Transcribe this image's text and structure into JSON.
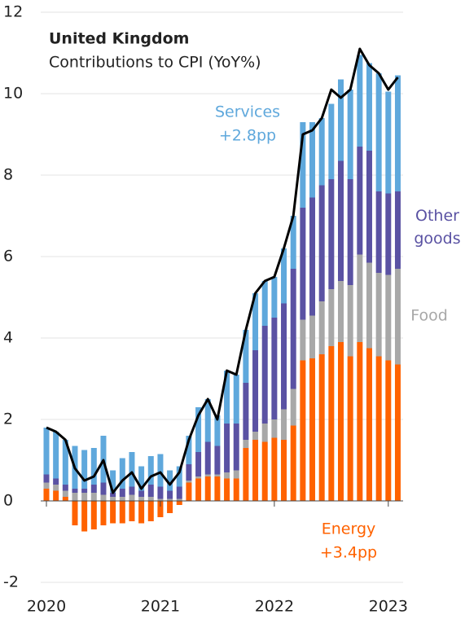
{
  "chart_data": {
    "type": "stacked-bar-line",
    "title": "United Kingdom",
    "subtitle": "Contributions to CPI (YoY%)",
    "x": [
      2020,
      2020.0833,
      2020.1667,
      2020.25,
      2020.3333,
      2020.4167,
      2020.5,
      2020.5833,
      2020.6667,
      2020.75,
      2020.8333,
      2020.9167,
      2021,
      2021.0833,
      2021.1667,
      2021.25,
      2021.3333,
      2021.4167,
      2021.5,
      2021.5833,
      2021.6667,
      2021.75,
      2021.8333,
      2021.9167,
      2022,
      2022.0833,
      2022.1667,
      2022.25,
      2022.3333,
      2022.4167,
      2022.5,
      2022.5833,
      2022.6667,
      2022.75,
      2022.8333,
      2022.9167,
      2023,
      2023.0833
    ],
    "series": [
      {
        "name": "Energy",
        "color": "#ff6200",
        "annotation": "+3.4pp",
        "values": [
          0.3,
          0.25,
          0.1,
          -0.6,
          -0.75,
          -0.7,
          -0.6,
          -0.55,
          -0.55,
          -0.5,
          -0.55,
          -0.5,
          -0.4,
          -0.3,
          -0.1,
          0.45,
          0.55,
          0.6,
          0.6,
          0.55,
          0.55,
          1.3,
          1.5,
          1.45,
          1.55,
          1.5,
          1.85,
          3.45,
          3.5,
          3.6,
          3.8,
          3.9,
          3.55,
          3.9,
          3.75,
          3.55,
          3.45,
          3.35
        ]
      },
      {
        "name": "Food",
        "color": "#a8a8a8",
        "values": [
          0.15,
          0.15,
          0.15,
          0.2,
          0.2,
          0.2,
          0.15,
          0.1,
          0.1,
          0.15,
          0.1,
          0.1,
          0.05,
          0.05,
          0.05,
          0.05,
          0.05,
          0.05,
          0.05,
          0.15,
          0.2,
          0.2,
          0.2,
          0.45,
          0.45,
          0.75,
          0.9,
          1.0,
          1.05,
          1.3,
          1.4,
          1.5,
          1.75,
          2.15,
          2.1,
          2.05,
          2.1,
          2.35
        ]
      },
      {
        "name": "Other goods",
        "color": "#5a52a3",
        "values": [
          0.2,
          0.15,
          0.15,
          0.1,
          0.1,
          0.2,
          0.3,
          0.1,
          0.2,
          0.2,
          0.15,
          0.3,
          0.3,
          0.2,
          0.3,
          0.4,
          0.6,
          0.8,
          0.7,
          1.2,
          1.15,
          1.4,
          2.0,
          2.4,
          2.5,
          2.6,
          2.95,
          2.75,
          2.9,
          2.85,
          2.7,
          2.95,
          2.6,
          2.65,
          2.75,
          2.0,
          2.0,
          1.9
        ]
      },
      {
        "name": "Services",
        "color": "#5fa8dc",
        "annotation": "+2.8pp",
        "values": [
          1.15,
          1.15,
          1.1,
          1.05,
          0.95,
          0.9,
          1.15,
          0.55,
          0.75,
          0.85,
          0.6,
          0.7,
          0.8,
          0.5,
          0.5,
          0.7,
          1.1,
          1.05,
          0.75,
          1.3,
          1.2,
          1.3,
          1.4,
          1.1,
          1.0,
          1.35,
          1.3,
          2.1,
          1.85,
          1.65,
          1.85,
          2.0,
          2.2,
          2.25,
          2.15,
          2.9,
          2.5,
          2.85
        ]
      },
      {
        "type": "line",
        "color": "#000000",
        "values": [
          1.8,
          1.7,
          1.5,
          0.8,
          0.5,
          0.6,
          1.0,
          0.2,
          0.5,
          0.7,
          0.3,
          0.6,
          0.7,
          0.4,
          0.7,
          1.5,
          2.1,
          2.5,
          2.0,
          3.2,
          3.1,
          4.2,
          5.1,
          5.4,
          5.5,
          6.2,
          7.0,
          9.0,
          9.1,
          9.4,
          10.1,
          9.9,
          10.1,
          11.1,
          10.7,
          10.5,
          10.1,
          10.4
        ]
      }
    ],
    "xlim": [
      2019.95,
      2023.13
    ],
    "xticks": [
      2020,
      2021,
      2022,
      2023
    ],
    "ylim": [
      -2.2,
      12.3
    ],
    "yticks": [
      -2,
      0,
      2,
      4,
      6,
      8,
      10,
      12
    ],
    "grid": true
  }
}
